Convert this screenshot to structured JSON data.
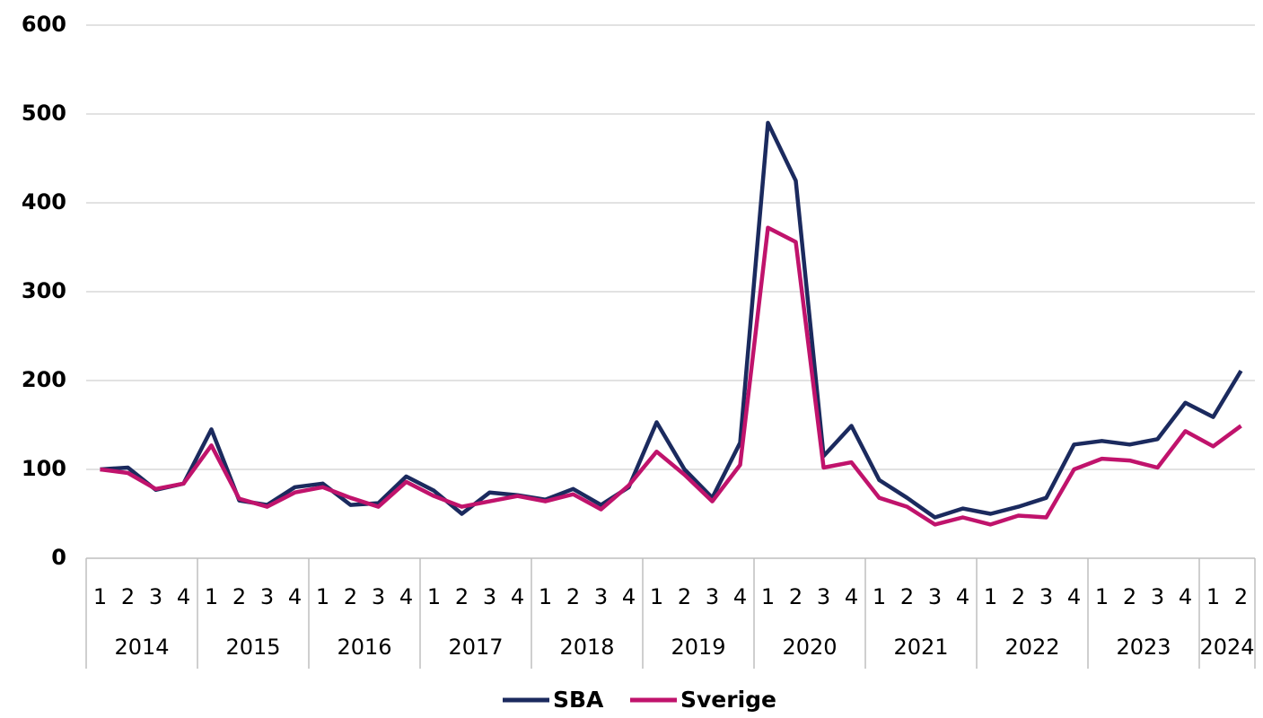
{
  "chart_data": {
    "type": "line",
    "categories": [
      {
        "group": "2014",
        "label": "1"
      },
      {
        "group": "2014",
        "label": "2"
      },
      {
        "group": "2014",
        "label": "3"
      },
      {
        "group": "2014",
        "label": "4"
      },
      {
        "group": "2015",
        "label": "1"
      },
      {
        "group": "2015",
        "label": "2"
      },
      {
        "group": "2015",
        "label": "3"
      },
      {
        "group": "2015",
        "label": "4"
      },
      {
        "group": "2016",
        "label": "1"
      },
      {
        "group": "2016",
        "label": "2"
      },
      {
        "group": "2016",
        "label": "3"
      },
      {
        "group": "2016",
        "label": "4"
      },
      {
        "group": "2017",
        "label": "1"
      },
      {
        "group": "2017",
        "label": "2"
      },
      {
        "group": "2017",
        "label": "3"
      },
      {
        "group": "2017",
        "label": "4"
      },
      {
        "group": "2018",
        "label": "1"
      },
      {
        "group": "2018",
        "label": "2"
      },
      {
        "group": "2018",
        "label": "3"
      },
      {
        "group": "2018",
        "label": "4"
      },
      {
        "group": "2019",
        "label": "1"
      },
      {
        "group": "2019",
        "label": "2"
      },
      {
        "group": "2019",
        "label": "3"
      },
      {
        "group": "2019",
        "label": "4"
      },
      {
        "group": "2020",
        "label": "1"
      },
      {
        "group": "2020",
        "label": "2"
      },
      {
        "group": "2020",
        "label": "3"
      },
      {
        "group": "2020",
        "label": "4"
      },
      {
        "group": "2021",
        "label": "1"
      },
      {
        "group": "2021",
        "label": "2"
      },
      {
        "group": "2021",
        "label": "3"
      },
      {
        "group": "2021",
        "label": "4"
      },
      {
        "group": "2022",
        "label": "1"
      },
      {
        "group": "2022",
        "label": "2"
      },
      {
        "group": "2022",
        "label": "3"
      },
      {
        "group": "2022",
        "label": "4"
      },
      {
        "group": "2023",
        "label": "1"
      },
      {
        "group": "2023",
        "label": "2"
      },
      {
        "group": "2023",
        "label": "3"
      },
      {
        "group": "2023",
        "label": "4"
      },
      {
        "group": "2024",
        "label": "1"
      },
      {
        "group": "2024",
        "label": "2"
      }
    ],
    "series": [
      {
        "name": "SBA",
        "color": "#1b2a5e",
        "values": [
          100,
          102,
          77,
          84,
          145,
          65,
          60,
          80,
          84,
          60,
          62,
          92,
          76,
          50,
          74,
          71,
          66,
          78,
          60,
          80,
          153,
          100,
          68,
          130,
          490,
          425,
          115,
          149,
          88,
          68,
          46,
          56,
          50,
          58,
          68,
          128,
          132,
          128,
          134,
          175,
          159,
          211
        ]
      },
      {
        "name": "Sverige",
        "color": "#c0136c",
        "values": [
          100,
          96,
          78,
          84,
          127,
          67,
          58,
          74,
          80,
          68,
          58,
          86,
          70,
          58,
          64,
          70,
          64,
          72,
          55,
          82,
          120,
          94,
          64,
          105,
          372,
          356,
          102,
          108,
          68,
          58,
          38,
          46,
          38,
          48,
          46,
          100,
          112,
          110,
          102,
          143,
          126,
          149
        ]
      }
    ],
    "ylim": [
      0,
      600
    ],
    "yticks": [
      0,
      100,
      200,
      300,
      400,
      500,
      600
    ],
    "grid": true,
    "legend": "bottom"
  }
}
